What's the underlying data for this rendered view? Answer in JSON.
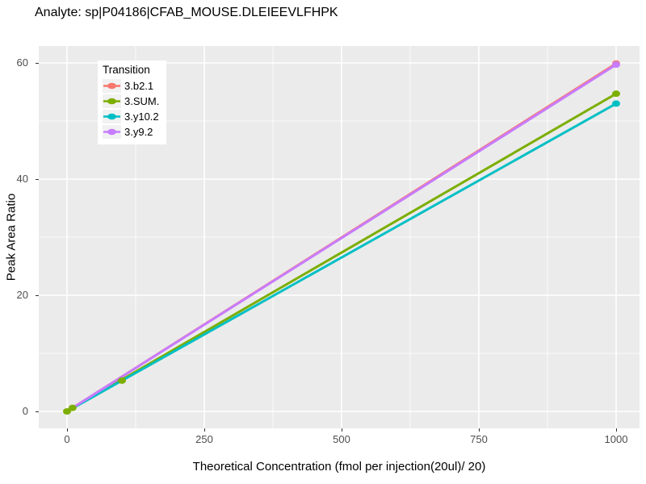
{
  "title": "Analyte: sp|P04186|CFAB_MOUSE.DLEIEEVLFHPK",
  "chart_data": {
    "type": "line",
    "title": "Analyte: sp|P04186|CFAB_MOUSE.DLEIEEVLFHPK",
    "xlabel": "Theoretical Concentration (fmol per injection(20ul)/ 20)",
    "ylabel": "Peak Area Ratio",
    "xlim": [
      -51,
      1043
    ],
    "ylim": [
      -3,
      62.9
    ],
    "x_ticks": [
      0,
      250,
      500,
      750,
      1000
    ],
    "y_ticks": [
      0,
      20,
      40,
      60
    ],
    "x_minor": [
      125,
      375,
      625,
      875
    ],
    "y_minor": [
      10,
      30,
      50
    ],
    "grid": "white major and minor gridlines on grey panel",
    "panel_bg": "#EBEBEB",
    "grid_color": "#FFFFFF",
    "tick_label_color": "#4D4D4D",
    "legend_title": "Transition",
    "legend_position": "inside-top-left",
    "series": [
      {
        "name": "3.b2.1",
        "color": "#F8766D",
        "line": {
          "x": [
            0,
            1000
          ],
          "y": [
            0,
            59.9
          ]
        },
        "points": [
          {
            "x": 1000,
            "y": 59.9
          }
        ],
        "note": "nearly coincident with 3.y9.2, mostly hidden beneath it"
      },
      {
        "name": "3.SUM.",
        "color": "#7CAE00",
        "line": {
          "x": [
            0,
            1000
          ],
          "y": [
            0,
            54.7
          ]
        },
        "points": [
          {
            "x": 0,
            "y": 0
          },
          {
            "x": 10,
            "y": 0.6
          },
          {
            "x": 100,
            "y": 5.3
          },
          {
            "x": 1000,
            "y": 54.7
          }
        ]
      },
      {
        "name": "3.y10.2",
        "color": "#00BFC4",
        "line": {
          "x": [
            0,
            1000
          ],
          "y": [
            0,
            53.0
          ]
        },
        "points": [
          {
            "x": 1000,
            "y": 53.0
          }
        ]
      },
      {
        "name": "3.y9.2",
        "color": "#C77CFF",
        "line": {
          "x": [
            0,
            1000
          ],
          "y": [
            0,
            59.7
          ]
        },
        "points": [
          {
            "x": 1000,
            "y": 59.7
          }
        ]
      }
    ]
  }
}
